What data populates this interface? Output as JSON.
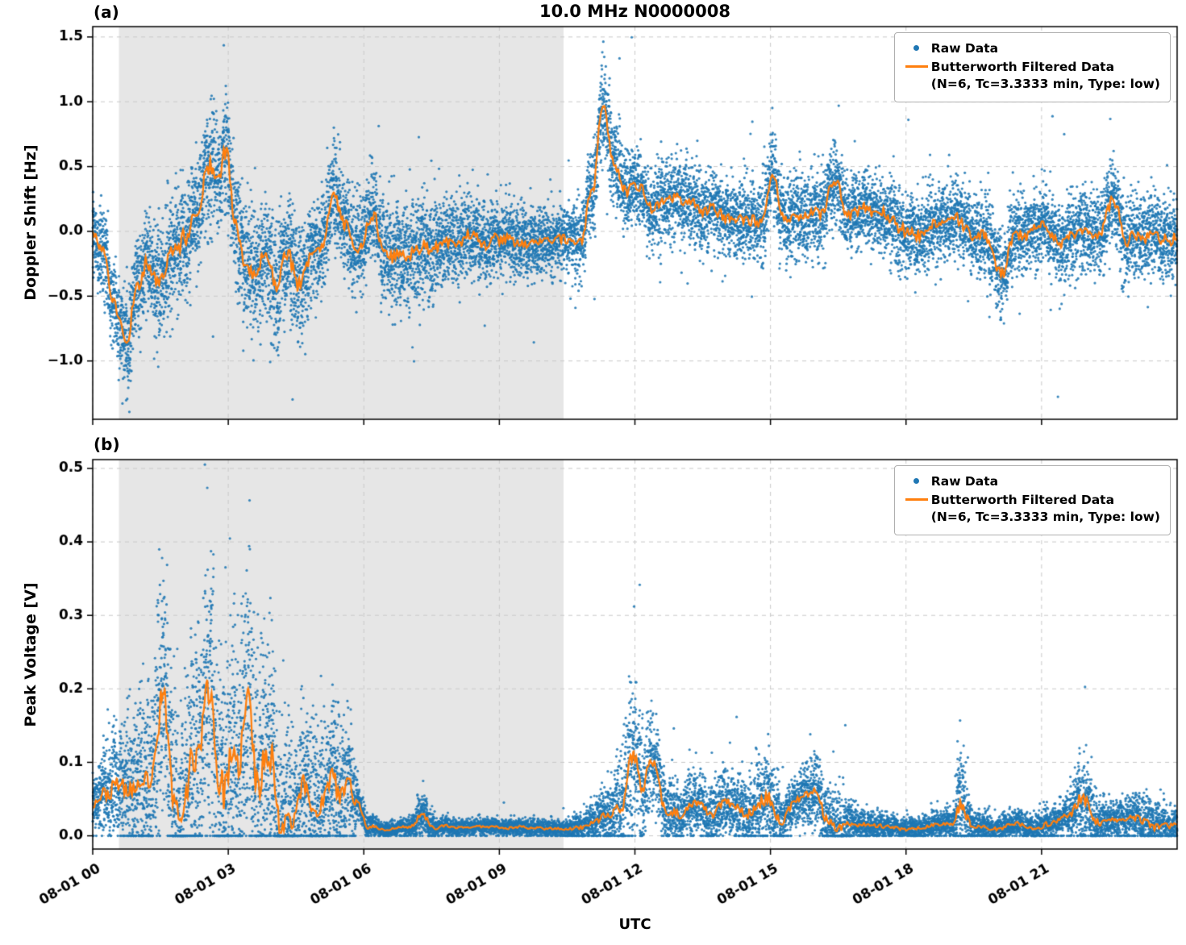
{
  "title": "10.0 MHz N0000008",
  "xlabel": "UTC",
  "colors": {
    "raw": "#1f77b4",
    "filtered": "#ff7f0e",
    "shade": "#e6e6e6",
    "grid": "#c9c9c9",
    "axis": "#000000",
    "background": "#ffffff"
  },
  "legend": {
    "raw_label": "Raw Data",
    "filtered_label": "Butterworth Filtered Data",
    "filtered_sub": "(N=6, Tc=3.3333 min, Type: low)",
    "position": "upper right"
  },
  "x_axis": {
    "range": [
      0,
      24
    ],
    "tick_hours": [
      0,
      3,
      6,
      9,
      12,
      15,
      18,
      21
    ],
    "tick_labels": [
      "08-01 00",
      "08-01 03",
      "08-01 06",
      "08-01 09",
      "08-01 12",
      "08-01 15",
      "08-01 18",
      "08-01 21"
    ],
    "tick_rotation_deg": 30
  },
  "shaded_region": {
    "x_start": 0.58,
    "x_end": 10.42
  },
  "chart_data": [
    {
      "type": "scatter",
      "panel": "a",
      "panel_label": "(a)",
      "ylabel": "Doppler Shift [Hz]",
      "ylim": [
        -1.45,
        1.58
      ],
      "yticks": [
        -1.0,
        -0.5,
        0.0,
        0.5,
        1.0,
        1.5
      ],
      "grid": true,
      "series": [
        {
          "name": "Raw Data",
          "style": "scatter",
          "color": "#1f77b4"
        },
        {
          "name": "Butterworth Filtered Data",
          "style": "line",
          "color": "#ff7f0e"
        }
      ],
      "filtered_mean": {
        "x": [
          0,
          0.2,
          0.45,
          0.75,
          1.0,
          1.2,
          1.5,
          1.8,
          2.05,
          2.3,
          2.55,
          2.75,
          2.95,
          3.15,
          3.35,
          3.6,
          3.85,
          4.05,
          4.3,
          4.55,
          4.8,
          5.05,
          5.3,
          5.6,
          5.9,
          6.2,
          6.5,
          6.8,
          7.1,
          7.5,
          8.0,
          8.5,
          9.0,
          9.5,
          10.0,
          10.4,
          10.8,
          11.05,
          11.3,
          11.55,
          11.8,
          12.1,
          12.4,
          12.8,
          13.2,
          13.6,
          14.0,
          14.4,
          14.8,
          15.05,
          15.3,
          15.7,
          16.1,
          16.45,
          16.7,
          17.0,
          17.4,
          17.8,
          18.2,
          18.6,
          19.0,
          19.4,
          19.8,
          20.1,
          20.35,
          20.6,
          21.0,
          21.4,
          21.8,
          22.2,
          22.6,
          22.85,
          23.1,
          23.5,
          24.0
        ],
        "y": [
          0.1,
          -0.05,
          -0.45,
          -0.78,
          -0.35,
          -0.22,
          -0.45,
          -0.25,
          -0.12,
          0.08,
          0.5,
          0.4,
          0.62,
          0.1,
          -0.25,
          -0.32,
          -0.12,
          -0.45,
          -0.18,
          -0.35,
          -0.15,
          -0.05,
          0.25,
          0.08,
          -0.15,
          0.12,
          -0.1,
          -0.18,
          -0.15,
          -0.12,
          -0.1,
          -0.08,
          -0.05,
          -0.06,
          -0.04,
          -0.06,
          -0.12,
          0.3,
          0.95,
          0.45,
          0.3,
          0.35,
          0.25,
          0.27,
          0.22,
          0.18,
          0.15,
          0.12,
          0.1,
          0.45,
          0.12,
          0.15,
          0.1,
          0.45,
          0.15,
          0.1,
          0.06,
          0.05,
          0.02,
          0.04,
          0.05,
          0.0,
          -0.04,
          -0.28,
          0.0,
          -0.03,
          0.08,
          -0.05,
          0.0,
          0.02,
          0.28,
          -0.05,
          -0.02,
          -0.05,
          -0.08
        ]
      },
      "raw_spread": {
        "x": [
          0,
          1,
          2,
          3,
          4,
          5,
          6,
          7,
          8,
          9,
          10,
          10.8,
          11.3,
          12,
          13,
          14,
          15,
          16,
          17,
          18,
          19,
          20,
          21,
          22,
          23,
          24
        ],
        "y": [
          0.2,
          0.24,
          0.27,
          0.3,
          0.3,
          0.25,
          0.22,
          0.25,
          0.2,
          0.18,
          0.16,
          0.18,
          0.24,
          0.18,
          0.2,
          0.18,
          0.2,
          0.2,
          0.18,
          0.19,
          0.18,
          0.2,
          0.18,
          0.19,
          0.2,
          0.21
        ]
      }
    },
    {
      "type": "scatter",
      "panel": "b",
      "panel_label": "(b)",
      "ylabel": "Peak Voltage [V]",
      "ylim": [
        -0.018,
        0.512
      ],
      "yticks": [
        0.0,
        0.1,
        0.2,
        0.3,
        0.4,
        0.5
      ],
      "grid": true,
      "clip_min_zero": true,
      "series": [
        {
          "name": "Raw Data",
          "style": "scatter",
          "color": "#1f77b4"
        },
        {
          "name": "Butterworth Filtered Data",
          "style": "line",
          "color": "#ff7f0e"
        }
      ],
      "filtered_mean": {
        "x": [
          0,
          0.3,
          0.7,
          1.0,
          1.3,
          1.55,
          1.75,
          2.0,
          2.3,
          2.6,
          2.8,
          3.0,
          3.2,
          3.45,
          3.65,
          3.9,
          4.15,
          4.45,
          4.75,
          5.0,
          5.3,
          5.6,
          5.85,
          6.1,
          6.5,
          7.0,
          7.3,
          7.6,
          8.0,
          8.5,
          9.0,
          9.5,
          10.0,
          10.5,
          11.0,
          11.4,
          11.7,
          11.95,
          12.15,
          12.4,
          12.7,
          13.0,
          13.3,
          13.6,
          14.0,
          14.4,
          14.9,
          15.2,
          15.6,
          16.0,
          16.3,
          16.6,
          17.0,
          17.5,
          18.0,
          18.5,
          19.0,
          19.2,
          19.5,
          20.0,
          20.5,
          21.0,
          21.5,
          21.9,
          22.3,
          22.7,
          23.1,
          23.5,
          24.0
        ],
        "y": [
          0.045,
          0.06,
          0.075,
          0.08,
          0.1,
          0.21,
          0.1,
          0.09,
          0.13,
          0.24,
          0.12,
          0.15,
          0.13,
          0.24,
          0.12,
          0.17,
          0.06,
          0.05,
          0.09,
          0.06,
          0.1,
          0.08,
          0.05,
          0.012,
          0.008,
          0.012,
          0.028,
          0.012,
          0.01,
          0.012,
          0.012,
          0.01,
          0.008,
          0.008,
          0.018,
          0.035,
          0.06,
          0.12,
          0.07,
          0.1,
          0.035,
          0.03,
          0.05,
          0.035,
          0.05,
          0.03,
          0.05,
          0.02,
          0.045,
          0.06,
          0.03,
          0.02,
          0.014,
          0.012,
          0.01,
          0.012,
          0.014,
          0.045,
          0.014,
          0.01,
          0.018,
          0.014,
          0.025,
          0.035,
          0.018,
          0.02,
          0.025,
          0.02,
          0.02
        ]
      },
      "raw_spread": {
        "x": [
          0,
          0.5,
          1.0,
          1.5,
          2.0,
          2.5,
          3.0,
          3.5,
          4.0,
          4.5,
          5.0,
          5.5,
          6.0,
          6.5,
          7.0,
          7.3,
          7.7,
          8.5,
          9.5,
          10.5,
          11.0,
          11.5,
          11.95,
          12.4,
          13.0,
          13.6,
          14.2,
          14.9,
          15.5,
          16.0,
          16.4,
          17.0,
          18.0,
          19.0,
          19.2,
          19.5,
          20.5,
          21.5,
          21.9,
          22.5,
          23.2,
          24.0
        ],
        "y": [
          0.03,
          0.05,
          0.07,
          0.1,
          0.1,
          0.12,
          0.12,
          0.12,
          0.1,
          0.07,
          0.07,
          0.07,
          0.01,
          0.006,
          0.008,
          0.018,
          0.008,
          0.007,
          0.007,
          0.008,
          0.015,
          0.03,
          0.07,
          0.04,
          0.025,
          0.03,
          0.025,
          0.04,
          0.02,
          0.03,
          0.035,
          0.012,
          0.009,
          0.012,
          0.05,
          0.012,
          0.012,
          0.015,
          0.04,
          0.015,
          0.022,
          0.018
        ]
      }
    }
  ]
}
